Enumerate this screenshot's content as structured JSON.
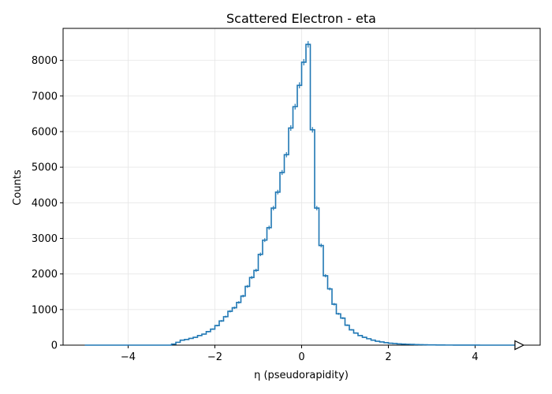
{
  "chart_data": {
    "type": "line",
    "style": "step-histogram",
    "title": "Scattered Electron - eta",
    "xlabel": "η (pseudorapidity)",
    "ylabel": "Counts",
    "xlim": [
      -5.5,
      5.5
    ],
    "ylim": [
      0,
      8900
    ],
    "xticks": [
      -4,
      -2,
      0,
      2,
      4
    ],
    "xtick_labels": [
      "−4",
      "−2",
      "0",
      "2",
      "4"
    ],
    "yticks": [
      0,
      1000,
      2000,
      3000,
      4000,
      5000,
      6000,
      7000,
      8000
    ],
    "ytick_labels": [
      "0",
      "1000",
      "2000",
      "3000",
      "4000",
      "5000",
      "6000",
      "7000",
      "8000"
    ],
    "grid": true,
    "line_color": "#1f77b4",
    "overflow_marker": "right-pointing-triangle",
    "series": [
      {
        "bin_edges": [
          -5.0,
          -4.9,
          -4.8,
          -4.7,
          -4.6,
          -4.5,
          -4.4,
          -4.3,
          -4.2,
          -4.1,
          -4.0,
          -3.9,
          -3.8,
          -3.7,
          -3.6,
          -3.5,
          -3.4,
          -3.3,
          -3.2,
          -3.1,
          -3.0,
          -2.9,
          -2.8,
          -2.7,
          -2.6,
          -2.5,
          -2.4,
          -2.3,
          -2.2,
          -2.1,
          -2.0,
          -1.9,
          -1.8,
          -1.7,
          -1.6,
          -1.5,
          -1.4,
          -1.3,
          -1.2,
          -1.1,
          -1.0,
          -0.9,
          -0.8,
          -0.7,
          -0.6,
          -0.5,
          -0.4,
          -0.3,
          -0.2,
          -0.1,
          0.0,
          0.1,
          0.2,
          0.3,
          0.4,
          0.5,
          0.6,
          0.7,
          0.8,
          0.9,
          1.0,
          1.1,
          1.2,
          1.3,
          1.4,
          1.5,
          1.6,
          1.7,
          1.8,
          1.9,
          2.0,
          2.1,
          2.2,
          2.3,
          2.4,
          2.5,
          2.6,
          2.7,
          2.8,
          2.9,
          3.0,
          3.1,
          3.2,
          3.3,
          3.4,
          3.5,
          3.6,
          3.7,
          3.8,
          3.9,
          4.0,
          4.1,
          4.2,
          4.3,
          4.4,
          4.5,
          4.6,
          4.7,
          4.8,
          4.9,
          5.0
        ],
        "counts": [
          0,
          0,
          0,
          0,
          0,
          0,
          0,
          0,
          0,
          0,
          0,
          0,
          0,
          0,
          0,
          0,
          0,
          0,
          0,
          0,
          30,
          80,
          140,
          160,
          190,
          220,
          270,
          310,
          380,
          450,
          550,
          680,
          800,
          950,
          1050,
          1200,
          1380,
          1650,
          1900,
          2100,
          2550,
          2950,
          3300,
          3850,
          4300,
          4850,
          5350,
          6100,
          6700,
          7300,
          7950,
          8450,
          6050,
          3850,
          2800,
          1950,
          1580,
          1150,
          880,
          760,
          560,
          430,
          340,
          270,
          220,
          180,
          140,
          110,
          90,
          70,
          55,
          45,
          35,
          30,
          25,
          20,
          15,
          12,
          10,
          8,
          6,
          5,
          4,
          3,
          3,
          2,
          2,
          1,
          1,
          1,
          1,
          0,
          0,
          0,
          0,
          0,
          0,
          0,
          0,
          0
        ]
      }
    ]
  }
}
